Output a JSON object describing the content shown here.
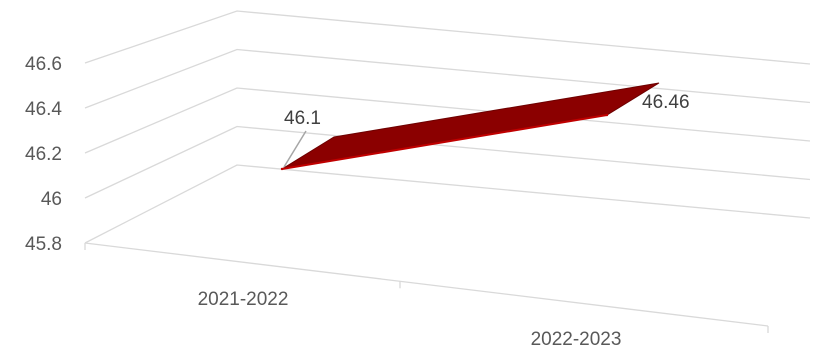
{
  "chart_data": {
    "type": "line",
    "style": "3d-line",
    "title": "",
    "xlabel": "",
    "ylabel": "",
    "categories": [
      "2021-2022",
      "2022-2023"
    ],
    "series": [
      {
        "values": [
          46.1,
          46.46
        ],
        "color": "#8b0000",
        "data_labels": [
          "46.1",
          "46.46"
        ]
      }
    ],
    "y_ticks": [
      "45.8",
      "46",
      "46.2",
      "46.4",
      "46.6"
    ],
    "ylim": [
      45.8,
      46.6
    ],
    "grid": true,
    "legend": "none"
  }
}
